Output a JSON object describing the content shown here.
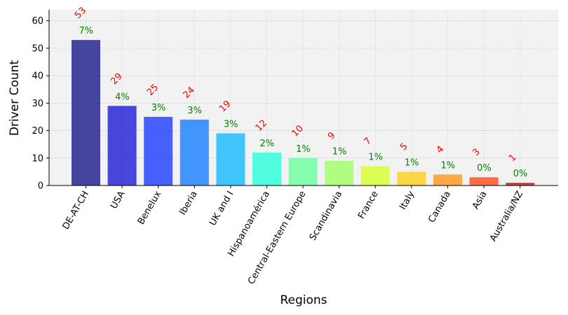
{
  "chart_data": {
    "type": "bar",
    "title": "",
    "xlabel": "Regions",
    "ylabel": "Driver Count",
    "ylim": [
      0,
      64
    ],
    "yticks": [
      0,
      10,
      20,
      30,
      40,
      50,
      60
    ],
    "grid": true,
    "categories": [
      "DE-AT-CH",
      "USA",
      "Benelux",
      "Iberia",
      "UK and I",
      "Hispanoamérica",
      "Central-Eastern Europe",
      "Scandinavia",
      "France",
      "Italy",
      "Canada",
      "Asia",
      "Australia/NZ"
    ],
    "values": [
      53,
      29,
      25,
      24,
      19,
      12,
      10,
      9,
      7,
      5,
      4,
      3,
      1
    ],
    "value_labels": [
      "53",
      "29",
      "25",
      "24",
      "19",
      "12",
      "10",
      "9",
      "7",
      "5",
      "4",
      "3",
      "1"
    ],
    "percent_labels": [
      "7%",
      "4%",
      "3%",
      "3%",
      "3%",
      "2%",
      "1%",
      "1%",
      "1%",
      "1%",
      "1%",
      "0%",
      "0%"
    ],
    "colors": [
      "#1f1f8c",
      "#2020d8",
      "#2040ff",
      "#1a80ff",
      "#18bcff",
      "#2cffd8",
      "#6cffa0",
      "#a0ff68",
      "#d8ff30",
      "#ffd020",
      "#ff9a20",
      "#ff5020",
      "#c81818"
    ],
    "value_label_color": "#ff0000",
    "percent_label_color": "#008000"
  }
}
